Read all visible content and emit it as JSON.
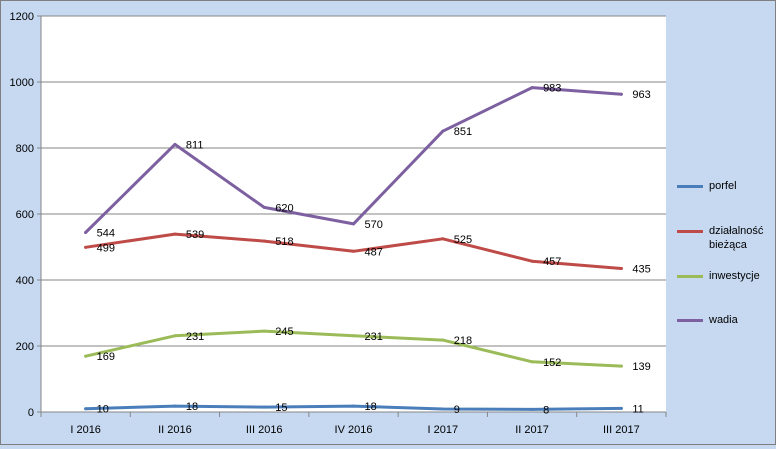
{
  "chart_data": {
    "type": "line",
    "title": "",
    "xlabel": "",
    "ylabel": "",
    "categories": [
      "I 2016",
      "II 2016",
      "III 2016",
      "IV 2016",
      "I 2017",
      "II 2017",
      "III 2017"
    ],
    "ylim": [
      0,
      1200
    ],
    "yticks": [
      0,
      200,
      400,
      600,
      800,
      1000,
      1200
    ],
    "grid": true,
    "legend_position": "right",
    "series": [
      {
        "name": "porfel",
        "color": "#4a7ebb",
        "values": [
          10,
          18,
          15,
          18,
          9,
          8,
          11
        ]
      },
      {
        "name": "działalność bieżąca",
        "color": "#be4b48",
        "values": [
          499,
          539,
          518,
          487,
          525,
          457,
          435
        ]
      },
      {
        "name": "inwestycje",
        "color": "#9bbb59",
        "values": [
          169,
          231,
          245,
          231,
          218,
          152,
          139
        ]
      },
      {
        "name": "wadia",
        "color": "#7d60a0",
        "values": [
          544,
          811,
          620,
          570,
          851,
          983,
          963
        ]
      }
    ]
  }
}
